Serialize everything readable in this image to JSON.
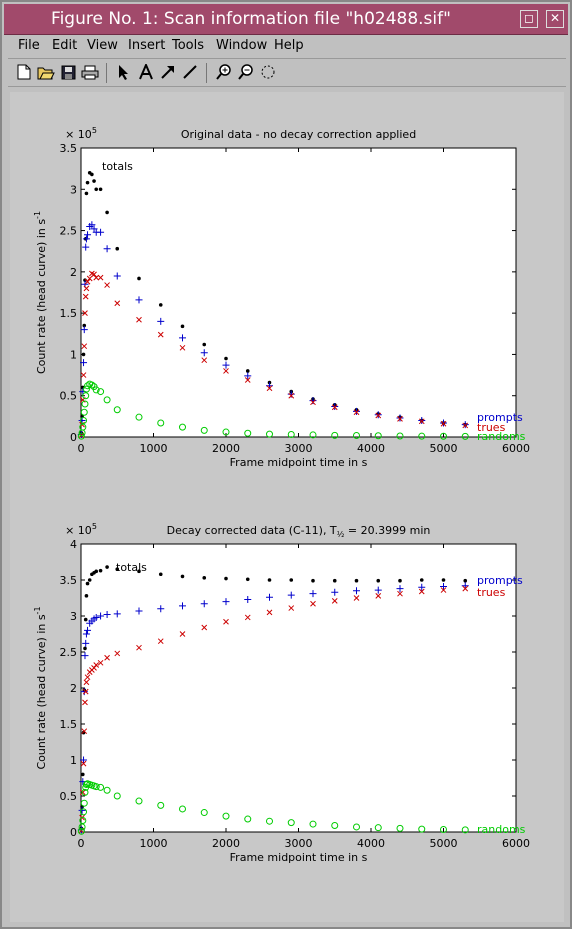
{
  "window": {
    "title": "Figure No. 1: Scan information file \"h02488.sif\""
  },
  "menubar": {
    "items": [
      "File",
      "Edit",
      "View",
      "Insert",
      "Tools",
      "Window",
      "Help"
    ]
  },
  "toolbar": {
    "icons": [
      "new-file-icon",
      "open-folder-icon",
      "save-icon",
      "print-icon",
      "arrow-select-icon",
      "text-insert-icon",
      "arrow-insert-icon",
      "line-insert-icon",
      "zoom-in-icon",
      "zoom-out-icon",
      "rotate-icon"
    ]
  },
  "colors": {
    "totals": "#000000",
    "prompts": "#0000cc",
    "trues": "#cc0000",
    "randoms": "#00cc00",
    "titlebar": "#a14a6b"
  },
  "chart_data": [
    {
      "type": "scatter",
      "title": "Original data - no decay correction applied",
      "xlabel": "Frame midpoint time in s",
      "ylabel": "Count rate (head curve) in s",
      "ylabel_sup": "-1",
      "exponent": "× 10",
      "exponent_sup": "5",
      "xlim": [
        0,
        6000
      ],
      "ylim": [
        0,
        3.5
      ],
      "xticks": [
        "0",
        "1000",
        "2000",
        "3000",
        "4000",
        "5000",
        "6000"
      ],
      "yticks": [
        "0",
        "0.5",
        "1",
        "1.5",
        "2",
        "2.5",
        "3",
        "3.5"
      ],
      "annotations": [
        "totals"
      ],
      "legend": [
        "prompts",
        "trues",
        "randoms"
      ],
      "x": [
        5,
        15,
        25,
        35,
        45,
        55,
        65,
        75,
        90,
        120,
        150,
        180,
        210,
        270,
        360,
        500,
        800,
        1100,
        1400,
        1700,
        2000,
        2300,
        2600,
        2900,
        3200,
        3500,
        3800,
        4100,
        4400,
        4700,
        5000,
        5300
      ],
      "series": [
        {
          "name": "totals",
          "marker": "dot",
          "values": [
            0.05,
            0.25,
            0.6,
            1.0,
            1.35,
            1.9,
            2.4,
            2.95,
            3.08,
            3.2,
            3.18,
            3.1,
            3.0,
            3.0,
            2.72,
            2.28,
            1.92,
            1.6,
            1.34,
            1.12,
            0.95,
            0.8,
            0.66,
            0.55,
            0.46,
            0.39,
            0.33,
            0.28,
            0.24,
            0.2,
            0.17,
            0.15
          ]
        },
        {
          "name": "prompts",
          "marker": "plus",
          "values": [
            0.03,
            0.2,
            0.55,
            0.9,
            1.3,
            1.85,
            2.3,
            2.4,
            2.45,
            2.55,
            2.57,
            2.52,
            2.48,
            2.48,
            2.28,
            1.95,
            1.66,
            1.4,
            1.2,
            1.02,
            0.87,
            0.74,
            0.62,
            0.52,
            0.44,
            0.37,
            0.31,
            0.27,
            0.23,
            0.2,
            0.17,
            0.15
          ]
        },
        {
          "name": "trues",
          "marker": "x",
          "values": [
            0.02,
            0.15,
            0.45,
            0.75,
            1.1,
            1.5,
            1.7,
            1.8,
            1.88,
            1.92,
            1.98,
            1.97,
            1.93,
            1.93,
            1.84,
            1.62,
            1.42,
            1.24,
            1.08,
            0.93,
            0.8,
            0.69,
            0.59,
            0.5,
            0.42,
            0.36,
            0.3,
            0.26,
            0.22,
            0.19,
            0.16,
            0.14
          ]
        },
        {
          "name": "randoms",
          "marker": "circle",
          "values": [
            0.01,
            0.05,
            0.12,
            0.2,
            0.3,
            0.4,
            0.5,
            0.58,
            0.62,
            0.64,
            0.63,
            0.61,
            0.57,
            0.55,
            0.45,
            0.33,
            0.24,
            0.17,
            0.12,
            0.08,
            0.06,
            0.045,
            0.035,
            0.03,
            0.025,
            0.02,
            0.018,
            0.015,
            0.012,
            0.01,
            0.009,
            0.008
          ]
        }
      ]
    },
    {
      "type": "scatter",
      "title": "Decay corrected data (C-11), T",
      "title_sub": "½",
      "title_rest": " = 20.3999 min",
      "xlabel": "Frame midpoint time in s",
      "ylabel": "Count rate (head curve) in s",
      "ylabel_sup": "-1",
      "exponent": "× 10",
      "exponent_sup": "5",
      "xlim": [
        0,
        6000
      ],
      "ylim": [
        0,
        4
      ],
      "xticks": [
        "0",
        "1000",
        "2000",
        "3000",
        "4000",
        "5000",
        "6000"
      ],
      "yticks": [
        "0",
        "0.5",
        "1",
        "1.5",
        "2",
        "2.5",
        "3",
        "3.5",
        "4"
      ],
      "annotations": [
        "totals"
      ],
      "legend": [
        "prompts",
        "trues",
        "randoms"
      ],
      "x": [
        5,
        15,
        25,
        35,
        45,
        55,
        65,
        75,
        90,
        120,
        150,
        180,
        210,
        270,
        360,
        500,
        800,
        1100,
        1400,
        1700,
        2000,
        2300,
        2600,
        2900,
        3200,
        3500,
        3800,
        4100,
        4400,
        4700,
        5000,
        5300
      ],
      "series": [
        {
          "name": "totals",
          "marker": "dot",
          "values": [
            0.05,
            0.35,
            0.8,
            1.38,
            1.97,
            2.55,
            2.95,
            3.28,
            3.45,
            3.5,
            3.58,
            3.6,
            3.62,
            3.63,
            3.68,
            3.65,
            3.62,
            3.58,
            3.55,
            3.53,
            3.52,
            3.51,
            3.5,
            3.5,
            3.49,
            3.49,
            3.49,
            3.49,
            3.49,
            3.5,
            3.5,
            3.49
          ]
        },
        {
          "name": "prompts",
          "marker": "plus",
          "values": [
            0.03,
            0.3,
            0.7,
            1.0,
            1.95,
            2.45,
            2.62,
            2.75,
            2.8,
            2.9,
            2.93,
            2.96,
            2.98,
            3.0,
            3.02,
            3.03,
            3.07,
            3.1,
            3.14,
            3.17,
            3.2,
            3.23,
            3.26,
            3.29,
            3.31,
            3.33,
            3.35,
            3.36,
            3.38,
            3.4,
            3.41,
            3.42
          ]
        },
        {
          "name": "trues",
          "marker": "x",
          "values": [
            0.02,
            0.2,
            0.55,
            0.95,
            1.4,
            1.8,
            1.95,
            2.08,
            2.15,
            2.22,
            2.25,
            2.28,
            2.32,
            2.35,
            2.42,
            2.48,
            2.56,
            2.65,
            2.75,
            2.84,
            2.92,
            2.98,
            3.05,
            3.11,
            3.17,
            3.21,
            3.25,
            3.28,
            3.31,
            3.34,
            3.36,
            3.38
          ]
        },
        {
          "name": "randoms",
          "marker": "circle",
          "values": [
            0.01,
            0.07,
            0.16,
            0.28,
            0.4,
            0.55,
            0.62,
            0.66,
            0.67,
            0.66,
            0.65,
            0.64,
            0.63,
            0.62,
            0.58,
            0.5,
            0.43,
            0.37,
            0.32,
            0.27,
            0.22,
            0.18,
            0.15,
            0.13,
            0.11,
            0.09,
            0.07,
            0.06,
            0.05,
            0.04,
            0.035,
            0.03
          ]
        }
      ]
    }
  ]
}
